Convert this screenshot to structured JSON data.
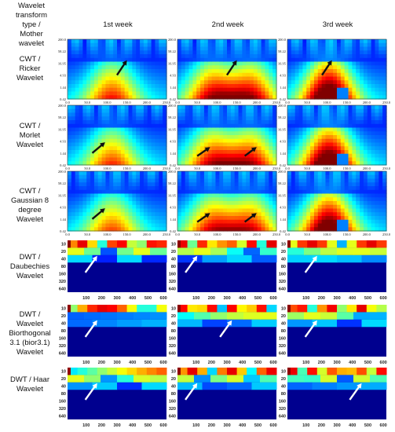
{
  "header": {
    "corner_label": [
      "Wavelet",
      "transform",
      "type /",
      "Mother",
      "wavelet"
    ],
    "weeks": [
      "1st week",
      "2nd week",
      "3rd week"
    ]
  },
  "rows": [
    {
      "label": [
        "CWT /",
        "Ricker",
        "Wavelet"
      ],
      "kind": "cwt"
    },
    {
      "label": [
        "CWT /",
        "Morlet",
        "Wavelet"
      ],
      "kind": "cwt"
    },
    {
      "label": [
        "CWT /",
        "Gaussian 8",
        "degree",
        "Wavelet"
      ],
      "kind": "cwt"
    },
    {
      "label": [
        "DWT /",
        "Daubechies",
        "Wavelet"
      ],
      "kind": "dwt"
    },
    {
      "label": [
        "DWT /",
        "Wavelet",
        "Biorthogonal",
        "3.1 (bior3.1)",
        "Wavelet"
      ],
      "kind": "dwt"
    },
    {
      "label": [
        "DWT / Haar",
        "Wavelet"
      ],
      "kind": "dwt"
    }
  ],
  "cwt_axes": {
    "y_ticks": [
      "200.0",
      "58.22",
      "16.95",
      "4.93",
      "1.44",
      "0.42"
    ],
    "x_ticks": [
      "0.0",
      "50.0",
      "100.0",
      "150.0",
      "200.0",
      "250.0"
    ]
  },
  "dwt_axes": {
    "y_ticks": [
      "10",
      "20",
      "40",
      "80",
      "160",
      "320",
      "640"
    ],
    "x_ticks": [
      "100",
      "200",
      "300",
      "400",
      "500",
      "600"
    ]
  },
  "colors": {
    "jet_low": "#00008f",
    "jet_mid": "#00ff80",
    "jet_high": "#8f0000",
    "arrow_cwt": "#111111",
    "arrow_dwt": "#ffffff"
  }
}
